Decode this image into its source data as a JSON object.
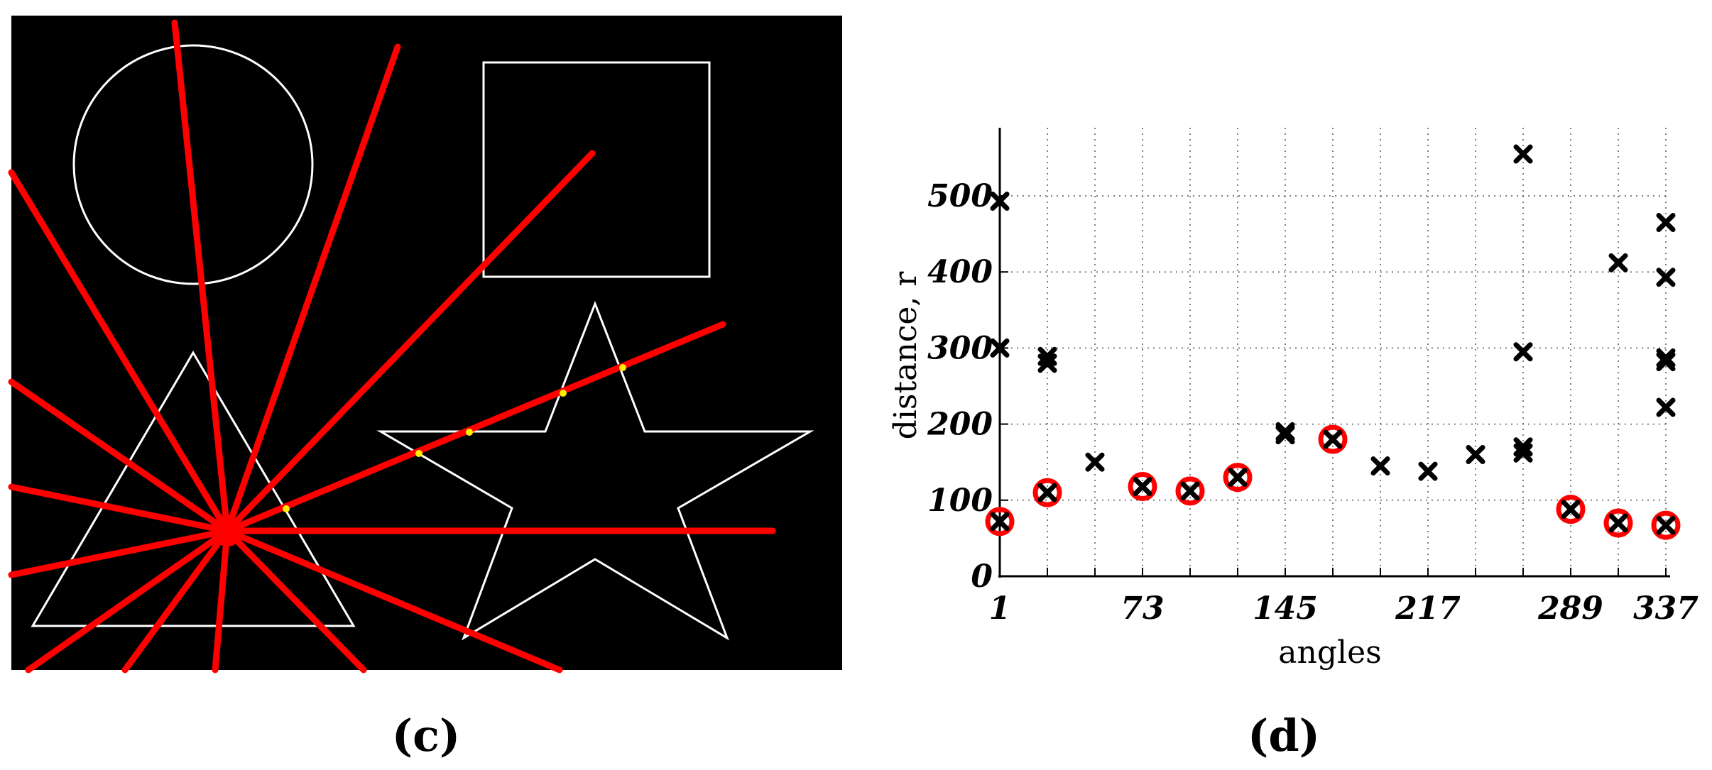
{
  "panels": {
    "left": {
      "label": "(c)"
    },
    "right": {
      "label": "(d)"
    }
  },
  "colors": {
    "background_image": "#000000",
    "shape_outline": "#ffffff",
    "ray": "#ff0000",
    "intersection_dot": "#ffee00",
    "marker": "#000000",
    "selected_circle": "#ff0000",
    "grid": "#555555"
  },
  "chart_data": [
    {
      "type": "image",
      "panel": "c",
      "shapes": [
        "circle",
        "square",
        "triangle",
        "star"
      ],
      "rays": 16
    },
    {
      "type": "scatter",
      "panel": "d",
      "xlabel": "angles",
      "ylabel": "distance, r",
      "x_ticks": [
        1,
        73,
        145,
        217,
        289,
        337
      ],
      "y_ticks": [
        0,
        100,
        200,
        300,
        400,
        500
      ],
      "xlim": [
        0,
        339
      ],
      "ylim": [
        0,
        590
      ],
      "grid": true,
      "x_gridlines": [
        1,
        25,
        49,
        73,
        97,
        121,
        145,
        169,
        193,
        217,
        241,
        265,
        289,
        313,
        337
      ],
      "series": [
        {
          "marker": "x",
          "points": [
            [
              1,
              72
            ],
            [
              1,
              300
            ],
            [
              1,
              493
            ],
            [
              25,
              110
            ],
            [
              25,
              280
            ],
            [
              25,
              289
            ],
            [
              49,
              150
            ],
            [
              73,
              118
            ],
            [
              97,
              112
            ],
            [
              121,
              130
            ],
            [
              145,
              186
            ],
            [
              145,
              190
            ],
            [
              169,
              180
            ],
            [
              193,
              145
            ],
            [
              217,
              138
            ],
            [
              241,
              160
            ],
            [
              265,
              162
            ],
            [
              265,
              170
            ],
            [
              265,
              295
            ],
            [
              265,
              555
            ],
            [
              289,
              88
            ],
            [
              313,
              70
            ],
            [
              313,
              412
            ],
            [
              337,
              67
            ],
            [
              337,
              222
            ],
            [
              337,
              282
            ],
            [
              337,
              287
            ],
            [
              337,
              393
            ],
            [
              337,
              465
            ]
          ]
        },
        {
          "marker": "circle",
          "points": [
            [
              1,
              72
            ],
            [
              25,
              110
            ],
            [
              73,
              118
            ],
            [
              97,
              112
            ],
            [
              121,
              130
            ],
            [
              169,
              180
            ],
            [
              289,
              88
            ],
            [
              313,
              70
            ],
            [
              337,
              67
            ]
          ]
        }
      ]
    }
  ]
}
